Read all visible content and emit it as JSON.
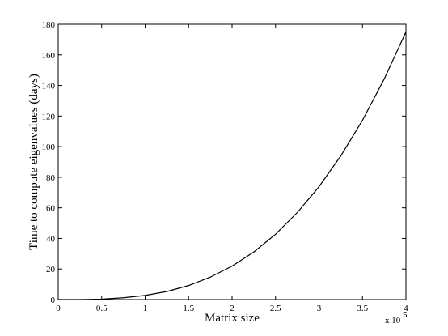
{
  "chart_data": {
    "type": "line",
    "x_label": "Matrix size",
    "y_label": "Time to compute eigenvalues (days)",
    "x_scale_label": {
      "base": "x 10",
      "exponent": "5"
    },
    "x": [
      0,
      0.25,
      0.5,
      0.75,
      1,
      1.25,
      1.5,
      1.75,
      2,
      2.25,
      2.5,
      2.75,
      3,
      3.25,
      3.5,
      3.75,
      4
    ],
    "series": [
      {
        "color": "#000000",
        "values": [
          0,
          0.04,
          0.3,
          1.2,
          2.7,
          5.3,
          9.2,
          14.7,
          21.9,
          31.1,
          42.7,
          56.9,
          73.8,
          93.9,
          117.2,
          144.2,
          175
        ]
      }
    ],
    "xlim": [
      0,
      4
    ],
    "xticks": [
      0,
      0.5,
      1,
      1.5,
      2,
      2.5,
      3,
      3.5,
      4
    ],
    "ylim": [
      0,
      180
    ],
    "yticks": [
      0,
      20,
      40,
      60,
      80,
      100,
      120,
      140,
      160,
      180
    ],
    "grid": false
  }
}
